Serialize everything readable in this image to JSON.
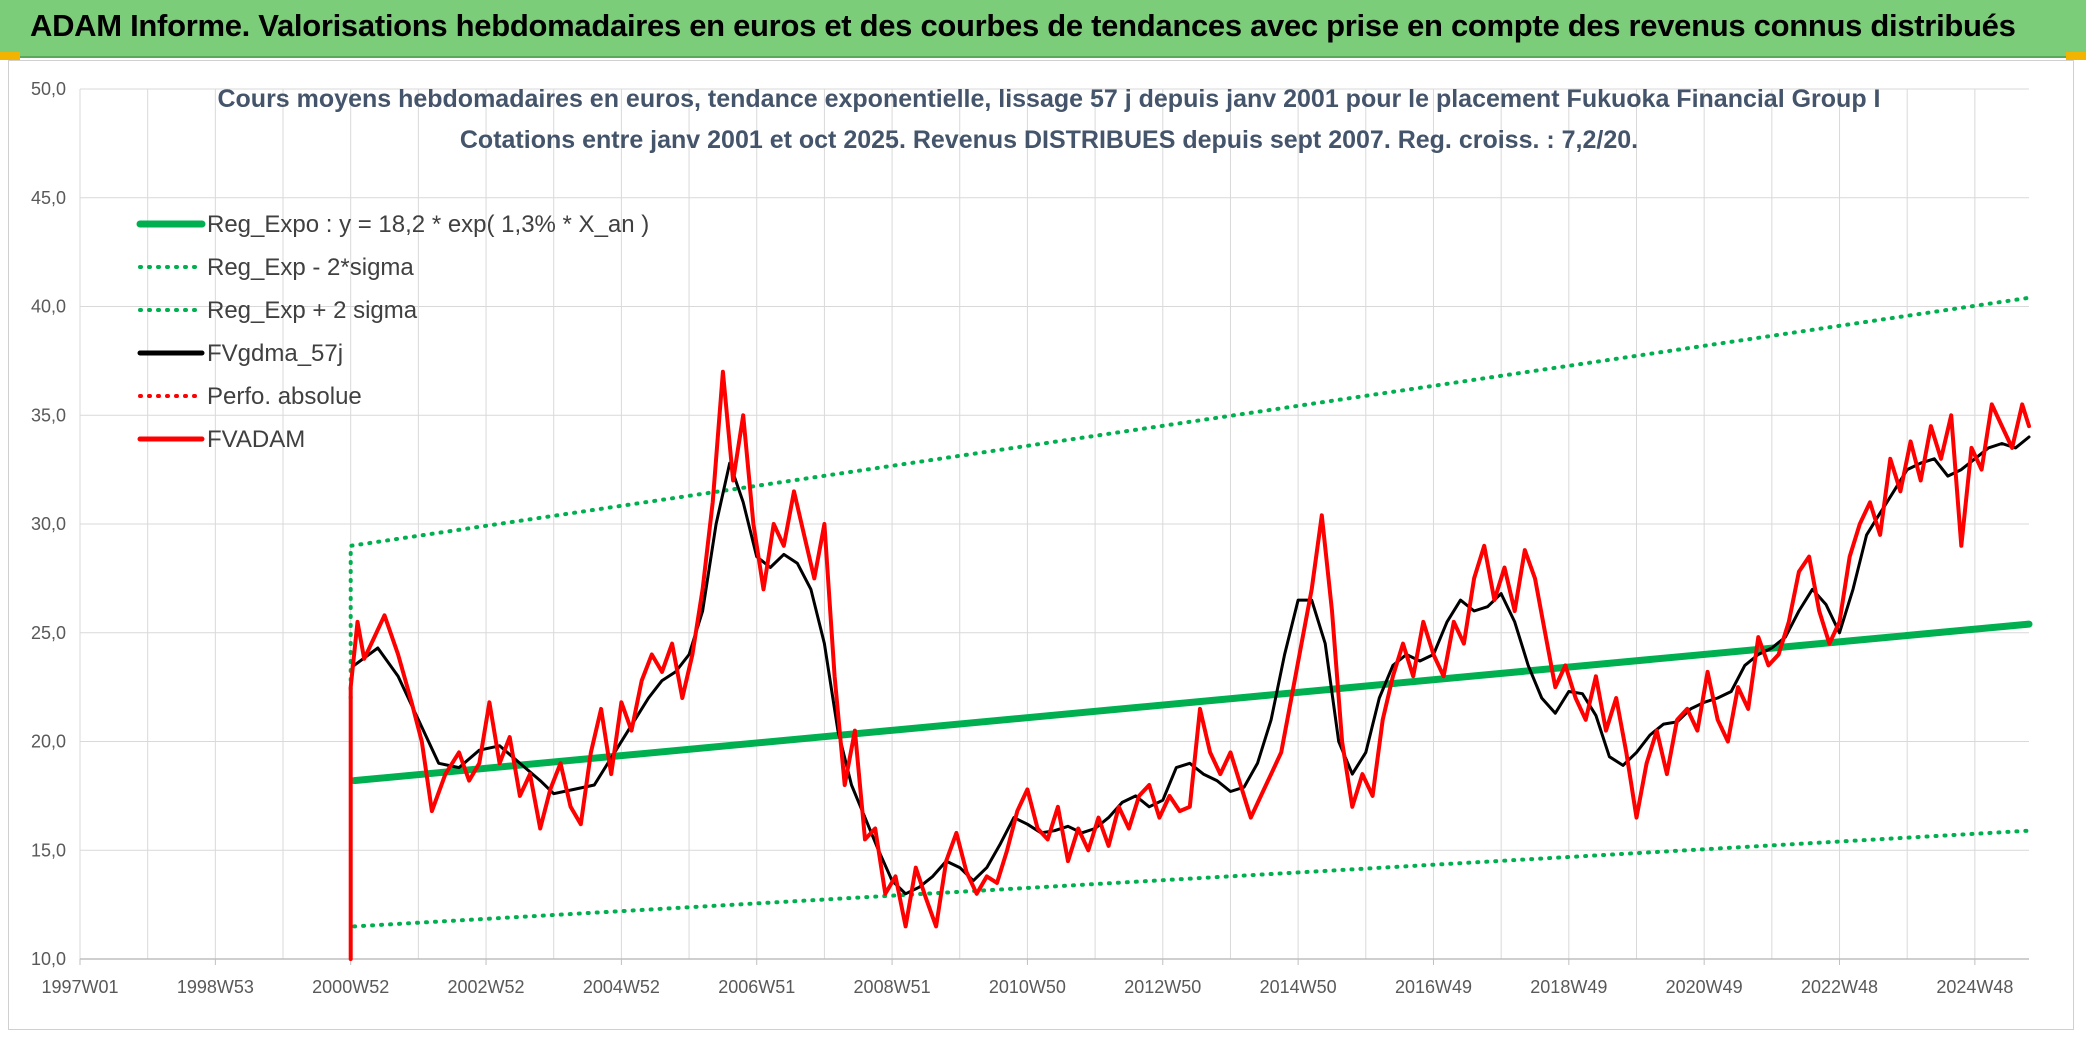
{
  "banner": {
    "title": "ADAM Informe. Valorisations hebdomadaires en euros et des courbes de tendances avec prise en compte des revenus connus distribués",
    "background": "#7ccd7a",
    "corner_color": "#f2b400"
  },
  "chart_data": {
    "type": "line",
    "title_line1": "Cours moyens hebdomadaires en euros, tendance exponentielle, lissage 57 j depuis janv 2001 pour le placement Fukuoka Financial Group I",
    "title_line2": "Cotations entre janv 2001 et oct 2025. Revenus DISTRIBUES depuis sept 2007. Reg. croiss. : 7,2/20.",
    "xlabel": "",
    "ylabel": "",
    "x_range": [
      1997.0,
      2025.8
    ],
    "ylim": [
      10,
      50
    ],
    "ytick_labels": [
      "10,0",
      "15,0",
      "20,0",
      "25,0",
      "30,0",
      "35,0",
      "40,0",
      "45,0",
      "50,0"
    ],
    "ytick_values": [
      10,
      15,
      20,
      25,
      30,
      35,
      40,
      45,
      50
    ],
    "xtick_labels": [
      "1997W01",
      "1998W53",
      "2000W52",
      "2002W52",
      "2004W52",
      "2006W51",
      "2008W51",
      "2010W50",
      "2012W50",
      "2014W50",
      "2016W49",
      "2018W49",
      "2020W49",
      "2022W48",
      "2024W48"
    ],
    "xtick_values": [
      1997.0,
      1999.0,
      2001.0,
      2003.0,
      2005.0,
      2007.0,
      2009.0,
      2011.0,
      2013.0,
      2015.0,
      2017.0,
      2019.0,
      2021.0,
      2023.0,
      2025.0
    ],
    "grid": true,
    "legend_position": "top-left",
    "series": [
      {
        "name": "Reg_Expo : y = 18,2 * exp( 1,3% *  X_an )",
        "color": "#00b050",
        "style": "solid",
        "width": 7,
        "x": [
          2001.05,
          2025.8
        ],
        "values": [
          18.2,
          25.4
        ]
      },
      {
        "name": "Reg_Exp - 2*sigma",
        "color": "#00b050",
        "style": "dotted",
        "width": 4,
        "x": [
          2001.05,
          2025.8
        ],
        "values": [
          11.5,
          15.9
        ]
      },
      {
        "name": "Reg_Exp + 2 sigma",
        "color": "#00b050",
        "style": "dotted",
        "width": 4,
        "x": [
          2001.0,
          2001.0,
          2025.8
        ],
        "values": [
          22.0,
          29.0,
          40.4
        ]
      },
      {
        "name": "FVgdma_57j",
        "color": "#000000",
        "style": "solid",
        "width": 3,
        "x": [
          2001.05,
          2001.4,
          2001.7,
          2002.0,
          2002.3,
          2002.6,
          2002.9,
          2003.2,
          2003.5,
          2003.8,
          2004.0,
          2004.3,
          2004.6,
          2004.9,
          2005.2,
          2005.4,
          2005.6,
          2005.8,
          2006.0,
          2006.2,
          2006.4,
          2006.6,
          2006.8,
          2007.0,
          2007.2,
          2007.4,
          2007.6,
          2007.8,
          2008.0,
          2008.2,
          2008.4,
          2008.6,
          2008.8,
          2009.0,
          2009.2,
          2009.4,
          2009.6,
          2009.8,
          2010.0,
          2010.2,
          2010.4,
          2010.6,
          2010.8,
          2011.0,
          2011.2,
          2011.4,
          2011.6,
          2011.8,
          2012.0,
          2012.2,
          2012.4,
          2012.6,
          2012.8,
          2013.0,
          2013.2,
          2013.4,
          2013.6,
          2013.8,
          2014.0,
          2014.2,
          2014.4,
          2014.6,
          2014.8,
          2015.0,
          2015.2,
          2015.4,
          2015.6,
          2015.8,
          2016.0,
          2016.2,
          2016.4,
          2016.6,
          2016.8,
          2017.0,
          2017.2,
          2017.4,
          2017.6,
          2017.8,
          2018.0,
          2018.2,
          2018.4,
          2018.6,
          2018.8,
          2019.0,
          2019.2,
          2019.4,
          2019.6,
          2019.8,
          2020.0,
          2020.2,
          2020.4,
          2020.6,
          2020.8,
          2021.0,
          2021.2,
          2021.4,
          2021.6,
          2021.8,
          2022.0,
          2022.2,
          2022.4,
          2022.6,
          2022.8,
          2023.0,
          2023.2,
          2023.4,
          2023.6,
          2023.8,
          2024.0,
          2024.2,
          2024.4,
          2024.6,
          2024.8,
          2025.0,
          2025.2,
          2025.4,
          2025.6,
          2025.8
        ],
        "values": [
          23.5,
          24.3,
          23.0,
          21.0,
          19.0,
          18.8,
          19.6,
          19.8,
          19.0,
          18.2,
          17.6,
          17.8,
          18.0,
          19.5,
          21.0,
          22.0,
          22.8,
          23.2,
          24.0,
          26.0,
          30.0,
          32.8,
          31.0,
          28.5,
          28.0,
          28.6,
          28.2,
          27.0,
          24.5,
          20.5,
          18.0,
          16.5,
          15.0,
          13.6,
          13.0,
          13.3,
          13.8,
          14.5,
          14.2,
          13.6,
          14.2,
          15.3,
          16.5,
          16.2,
          15.8,
          15.9,
          16.1,
          15.8,
          16.0,
          16.5,
          17.2,
          17.5,
          17.0,
          17.3,
          18.8,
          19.0,
          18.5,
          18.2,
          17.7,
          17.9,
          19.0,
          21.0,
          24.0,
          26.5,
          26.5,
          24.5,
          20.0,
          18.5,
          19.5,
          22.0,
          23.5,
          24.0,
          23.7,
          24.0,
          25.5,
          26.5,
          26.0,
          26.2,
          26.8,
          25.5,
          23.5,
          22.0,
          21.3,
          22.3,
          22.2,
          21.2,
          19.3,
          18.9,
          19.5,
          20.3,
          20.8,
          20.9,
          21.5,
          21.8,
          22.0,
          22.3,
          23.5,
          24.0,
          24.3,
          24.8,
          26.0,
          27.0,
          26.3,
          25.0,
          27.0,
          29.5,
          30.5,
          31.5,
          32.5,
          32.8,
          33.0,
          32.2,
          32.5,
          33.0,
          33.5,
          33.7,
          33.5,
          34.0
        ]
      },
      {
        "name": "Perfo. absolue",
        "color": "#ff0000",
        "style": "dotted",
        "width": 3,
        "x": [],
        "values": []
      },
      {
        "name": "FVADAM",
        "color": "#ff0000",
        "style": "solid",
        "width": 4,
        "x": [
          2001.0,
          2001.0,
          2001.1,
          2001.2,
          2001.35,
          2001.5,
          2001.7,
          2001.9,
          2002.05,
          2002.2,
          2002.4,
          2002.6,
          2002.75,
          2002.9,
          2003.05,
          2003.2,
          2003.35,
          2003.5,
          2003.65,
          2003.8,
          2003.95,
          2004.1,
          2004.25,
          2004.4,
          2004.55,
          2004.7,
          2004.85,
          2005.0,
          2005.15,
          2005.3,
          2005.45,
          2005.6,
          2005.75,
          2005.9,
          2006.05,
          2006.2,
          2006.35,
          2006.5,
          2006.65,
          2006.8,
          2006.95,
          2007.1,
          2007.25,
          2007.4,
          2007.55,
          2007.7,
          2007.85,
          2008.0,
          2008.15,
          2008.3,
          2008.45,
          2008.6,
          2008.75,
          2008.9,
          2009.05,
          2009.2,
          2009.35,
          2009.5,
          2009.65,
          2009.8,
          2009.95,
          2010.1,
          2010.25,
          2010.4,
          2010.55,
          2010.7,
          2010.85,
          2011.0,
          2011.15,
          2011.3,
          2011.45,
          2011.6,
          2011.75,
          2011.9,
          2012.05,
          2012.2,
          2012.35,
          2012.5,
          2012.65,
          2012.8,
          2012.95,
          2013.1,
          2013.25,
          2013.4,
          2013.55,
          2013.7,
          2013.85,
          2014.0,
          2014.15,
          2014.3,
          2014.45,
          2014.6,
          2014.75,
          2014.9,
          2015.05,
          2015.2,
          2015.35,
          2015.5,
          2015.65,
          2015.8,
          2015.95,
          2016.1,
          2016.25,
          2016.4,
          2016.55,
          2016.7,
          2016.85,
          2017.0,
          2017.15,
          2017.3,
          2017.45,
          2017.6,
          2017.75,
          2017.9,
          2018.05,
          2018.2,
          2018.35,
          2018.5,
          2018.65,
          2018.8,
          2018.95,
          2019.1,
          2019.25,
          2019.4,
          2019.55,
          2019.7,
          2019.85,
          2020.0,
          2020.15,
          2020.3,
          2020.45,
          2020.6,
          2020.75,
          2020.9,
          2021.05,
          2021.2,
          2021.35,
          2021.5,
          2021.65,
          2021.8,
          2021.95,
          2022.1,
          2022.25,
          2022.4,
          2022.55,
          2022.7,
          2022.85,
          2023.0,
          2023.15,
          2023.3,
          2023.45,
          2023.6,
          2023.75,
          2023.9,
          2024.05,
          2024.2,
          2024.35,
          2024.5,
          2024.65,
          2024.8,
          2024.95,
          2025.1,
          2025.25,
          2025.4,
          2025.55,
          2025.7,
          2025.8
        ],
        "values": [
          10.0,
          22.5,
          25.5,
          23.8,
          24.8,
          25.8,
          24.0,
          21.8,
          20.0,
          16.8,
          18.5,
          19.5,
          18.2,
          19.0,
          21.8,
          19.0,
          20.2,
          17.5,
          18.5,
          16.0,
          17.8,
          19.0,
          17.0,
          16.2,
          19.5,
          21.5,
          18.5,
          21.8,
          20.5,
          22.8,
          24.0,
          23.2,
          24.5,
          22.0,
          24.0,
          27.0,
          31.0,
          37.0,
          32.0,
          35.0,
          30.0,
          27.0,
          30.0,
          29.0,
          31.5,
          29.5,
          27.5,
          30.0,
          23.0,
          18.0,
          20.5,
          15.5,
          16.0,
          13.0,
          13.8,
          11.5,
          14.2,
          12.8,
          11.5,
          14.5,
          15.8,
          14.0,
          13.0,
          13.8,
          13.5,
          15.0,
          16.8,
          17.8,
          16.0,
          15.5,
          17.0,
          14.5,
          16.0,
          15.0,
          16.5,
          15.2,
          17.0,
          16.0,
          17.5,
          18.0,
          16.5,
          17.5,
          16.8,
          17.0,
          21.5,
          19.5,
          18.5,
          19.5,
          18.0,
          16.5,
          17.5,
          18.5,
          19.5,
          22.0,
          24.5,
          27.0,
          30.4,
          26.0,
          20.0,
          17.0,
          18.5,
          17.5,
          21.0,
          23.0,
          24.5,
          23.0,
          25.5,
          24.0,
          23.0,
          25.5,
          24.5,
          27.5,
          29.0,
          26.5,
          28.0,
          26.0,
          28.8,
          27.5,
          25.0,
          22.5,
          23.5,
          22.0,
          21.0,
          23.0,
          20.5,
          22.0,
          19.5,
          16.5,
          19.0,
          20.5,
          18.5,
          21.0,
          21.5,
          20.5,
          23.2,
          21.0,
          20.0,
          22.5,
          21.5,
          24.8,
          23.5,
          24.0,
          25.5,
          27.8,
          28.5,
          26.0,
          24.5,
          25.5,
          28.5,
          30.0,
          31.0,
          29.5,
          33.0,
          31.5,
          33.8,
          32.0,
          34.5,
          33.0,
          35.0,
          29.0,
          33.5,
          32.5,
          35.5,
          34.5,
          33.5,
          35.5,
          34.5
        ]
      }
    ]
  }
}
